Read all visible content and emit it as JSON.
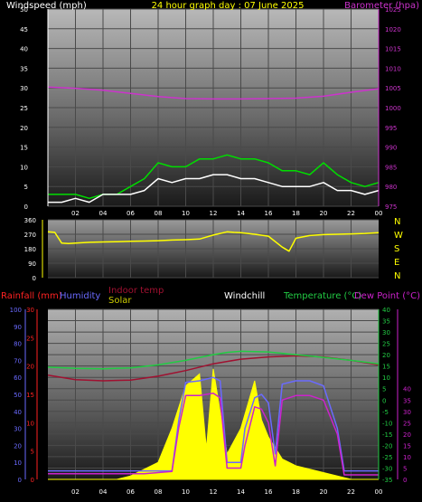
{
  "header": {
    "title": "24 hour graph day : 07 June 2025"
  },
  "colors": {
    "background": "#000000",
    "windspeed": "#ffffff",
    "windgust": "#00dd00",
    "barometer": "#cc33cc",
    "direction": "#ffff00",
    "rainfall": "#ff2222",
    "humidity": "#6a6aff",
    "indoor_temp": "#a01030",
    "solar": "#ffff00",
    "windchill": "#ffffff",
    "temperature": "#22cc44",
    "dew_point": "#cc22cc"
  },
  "x_axis": {
    "tick_labels": [
      "02",
      "04",
      "06",
      "08",
      "10",
      "12",
      "14",
      "16",
      "18",
      "20",
      "22",
      "00"
    ]
  },
  "chart_data": [
    {
      "type": "line",
      "panel": "wind-and-barometer",
      "left_axis_label": "Windspeed (mph)",
      "right_axis_label": "Barometer (hpa)",
      "left_ticks": [
        "0",
        "5",
        "10",
        "15",
        "20",
        "25",
        "30",
        "35",
        "40",
        "45",
        "50"
      ],
      "right_ticks": [
        "975",
        "980",
        "985",
        "990",
        "995",
        "1000",
        "1005",
        "1010",
        "1015",
        "1020",
        "1025"
      ],
      "left_range": [
        0,
        50
      ],
      "right_range": [
        975,
        1025
      ],
      "x_range_hours": [
        0,
        24
      ],
      "series": [
        {
          "key": "barometer",
          "x": [
            0,
            2,
            4,
            6,
            8,
            10,
            12,
            14,
            16,
            18,
            20,
            22,
            24
          ],
          "values": [
            1005.2,
            1004.9,
            1004.4,
            1003.6,
            1002.8,
            1002.3,
            1002.2,
            1002.2,
            1002.3,
            1002.4,
            1002.9,
            1003.9,
            1004.8
          ]
        },
        {
          "key": "windspeed",
          "x": [
            0,
            1,
            2,
            3,
            4,
            5,
            6,
            7,
            8,
            9,
            10,
            11,
            12,
            13,
            14,
            15,
            16,
            17,
            18,
            19,
            20,
            21,
            22,
            23,
            24
          ],
          "values": [
            1,
            1,
            2,
            1,
            3,
            3,
            3,
            4,
            7,
            6,
            7,
            7,
            8,
            8,
            7,
            7,
            6,
            5,
            5,
            5,
            6,
            4,
            4,
            3,
            4
          ]
        },
        {
          "key": "windgust",
          "x": [
            0,
            1,
            2,
            3,
            4,
            5,
            6,
            7,
            8,
            9,
            10,
            11,
            12,
            13,
            14,
            15,
            16,
            17,
            18,
            19,
            20,
            21,
            22,
            23,
            24
          ],
          "values": [
            3,
            3,
            3,
            2,
            3,
            3,
            5,
            7,
            11,
            10,
            10,
            12,
            12,
            13,
            12,
            12,
            11,
            9,
            9,
            8,
            11,
            8,
            6,
            5,
            6
          ]
        }
      ]
    },
    {
      "type": "line",
      "panel": "wind-direction",
      "left_ticks": [
        "0",
        "90",
        "180",
        "270",
        "360"
      ],
      "right_ticks": [
        "N",
        "W",
        "S",
        "E",
        "N"
      ],
      "left_range": [
        0,
        360
      ],
      "x_range_hours": [
        0,
        24
      ],
      "series": [
        {
          "key": "direction",
          "x": [
            0,
            0.5,
            1,
            1.5,
            2,
            3,
            4,
            5,
            6,
            7,
            8,
            9,
            10,
            11,
            12,
            13,
            13.5,
            14,
            15,
            16,
            17,
            17.5,
            18,
            19,
            20,
            21,
            22,
            23,
            24
          ],
          "values": [
            285,
            282,
            215,
            212,
            215,
            220,
            222,
            224,
            226,
            228,
            230,
            234,
            236,
            240,
            265,
            285,
            282,
            280,
            270,
            258,
            190,
            165,
            245,
            262,
            268,
            270,
            272,
            275,
            280
          ]
        }
      ]
    },
    {
      "type": "line",
      "panel": "temperature-humidity-solar",
      "legend": [
        "Rainfall (mm)",
        "Humidity",
        "Indoor temp",
        "Solar",
        "Windchill",
        "Temperature (°C)",
        "Dew Point (°C)"
      ],
      "rain_ticks": [
        "0",
        "5",
        "10",
        "15",
        "20",
        "25",
        "30"
      ],
      "humidity_ticks": [
        "0",
        "10",
        "20",
        "30",
        "40",
        "50",
        "60",
        "70",
        "80",
        "90",
        "100"
      ],
      "temp_ticks_inner": [
        "-35",
        "-30",
        "-25",
        "-20",
        "-15",
        "-10",
        "-5",
        "0",
        "5",
        "10",
        "15",
        "20",
        "25",
        "30",
        "35",
        "40"
      ],
      "temp_ticks_outer": [
        "0",
        "5",
        "10",
        "15",
        "20",
        "25",
        "30",
        "35",
        "40"
      ],
      "temp_range": [
        -35,
        40
      ],
      "x_range_hours": [
        0,
        24
      ],
      "series": [
        {
          "key": "temperature",
          "x": [
            0,
            2,
            4,
            6,
            8,
            10,
            12,
            13,
            14,
            16,
            18,
            20,
            22,
            24
          ],
          "values": [
            14.5,
            14.0,
            13.8,
            14.2,
            15.5,
            17.5,
            20.0,
            21.0,
            21.5,
            21.2,
            20.0,
            18.8,
            17.5,
            16.0
          ]
        },
        {
          "key": "indoor_temp",
          "x": [
            0,
            2,
            4,
            6,
            8,
            10,
            12,
            14,
            16,
            18,
            20,
            22,
            24
          ],
          "values": [
            11.0,
            9.0,
            8.5,
            8.8,
            10.5,
            13.0,
            16.0,
            18.0,
            19.0,
            19.5,
            19.0,
            17.5,
            15.5
          ]
        },
        {
          "key": "humidity",
          "x": [
            0,
            2,
            4,
            6,
            7,
            8,
            9,
            9.5,
            10,
            11,
            12,
            12.5,
            13,
            14,
            14.3,
            15,
            15.5,
            16,
            16.5,
            17,
            18,
            19,
            20,
            21,
            21.5,
            22,
            23,
            24
          ],
          "values": [
            5,
            5,
            5,
            5,
            5,
            5,
            5,
            35,
            57,
            58,
            60,
            58,
            10,
            10,
            30,
            48,
            50,
            45,
            15,
            56,
            58,
            58,
            55,
            30,
            5,
            5,
            5,
            5
          ]
        },
        {
          "key": "dew_point",
          "x": [
            0,
            2,
            4,
            6,
            7,
            8,
            9,
            9.5,
            10,
            11,
            12,
            12.5,
            13,
            14,
            14.3,
            15,
            15.5,
            16,
            16.5,
            17,
            18,
            19,
            20,
            21,
            21.5,
            22,
            23,
            24
          ],
          "values": [
            -32.5,
            -32.5,
            -32.5,
            -32.5,
            -32.5,
            -32.0,
            -31.5,
            -12,
            2,
            2,
            3,
            1,
            -30,
            -30,
            -20,
            -3,
            -4,
            -10,
            -29,
            0,
            2,
            2,
            0,
            -15,
            -33,
            -33,
            -33,
            -33
          ]
        },
        {
          "key": "solar",
          "x": [
            0,
            5,
            6,
            7,
            8,
            9,
            10,
            11,
            11.5,
            12,
            12.5,
            13,
            14,
            15,
            15.5,
            16,
            17,
            18,
            19,
            20,
            21,
            22,
            24
          ],
          "values": [
            0,
            0,
            2,
            6,
            10,
            30,
            55,
            62,
            18,
            65,
            40,
            15,
            30,
            58,
            35,
            25,
            12,
            8,
            6,
            4,
            2,
            0,
            0
          ]
        }
      ]
    }
  ]
}
